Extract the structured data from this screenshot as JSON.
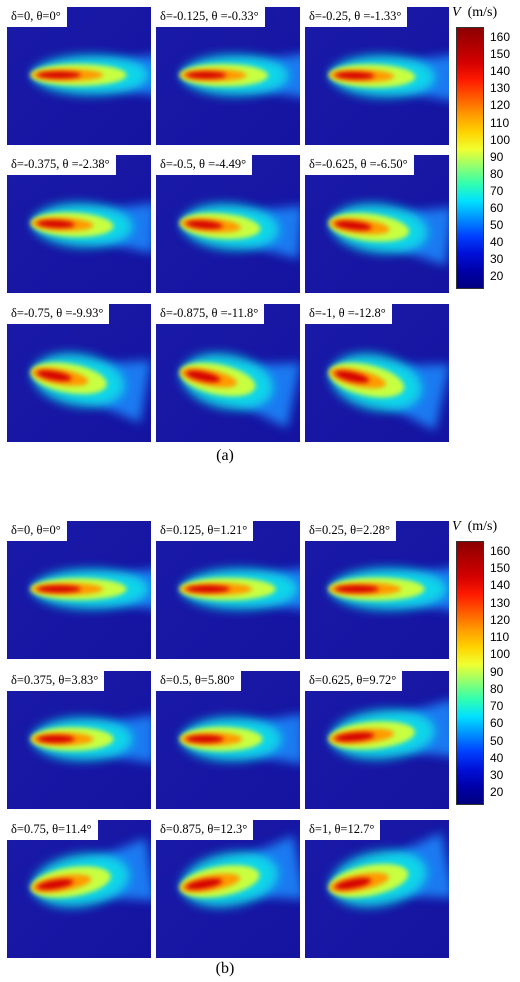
{
  "figure_a": {
    "sublabel": "(a)",
    "panels": [
      {
        "label": "δ=0, θ=0°",
        "tilt": 0,
        "len": 1.0,
        "spread": 0.0
      },
      {
        "label": "δ=-0.125, θ =-0.33°",
        "tilt": 0.3,
        "len": 0.92,
        "spread": 0.05
      },
      {
        "label": "δ=-0.25, θ =-1.33°",
        "tilt": 1.3,
        "len": 0.9,
        "spread": 0.1
      },
      {
        "label": "δ=-0.375, θ =-2.38°",
        "tilt": 2.4,
        "len": 0.86,
        "spread": 0.2
      },
      {
        "label": "δ=-0.5, θ =-4.49°",
        "tilt": 4.5,
        "len": 0.84,
        "spread": 0.3
      },
      {
        "label": "δ=-0.625, θ =-6.50°",
        "tilt": 6.5,
        "len": 0.84,
        "spread": 0.45
      },
      {
        "label": "δ=-0.75, θ =-9.93°",
        "tilt": 9.9,
        "len": 0.8,
        "spread": 0.6
      },
      {
        "label": "δ=-0.875, θ =-11.8°",
        "tilt": 11.8,
        "len": 0.8,
        "spread": 0.7
      },
      {
        "label": "δ=-1, θ =-12.8°",
        "tilt": 12.8,
        "len": 0.8,
        "spread": 0.75
      }
    ]
  },
  "figure_b": {
    "sublabel": "(b)",
    "panels": [
      {
        "label": "δ=0, θ=0°",
        "tilt": 0,
        "len": 1.0,
        "spread": 0.0
      },
      {
        "label": "δ=0.125, θ=1.21°",
        "tilt": 0,
        "len": 1.0,
        "spread": 0.05
      },
      {
        "label": "δ=0.25, θ=2.28°",
        "tilt": 0,
        "len": 1.0,
        "spread": 0.1
      },
      {
        "label": "δ=0.375, θ=3.83°",
        "tilt": 0,
        "len": 0.86,
        "spread": 0.15
      },
      {
        "label": "δ=0.5, θ=5.80°",
        "tilt": 0,
        "len": 0.86,
        "spread": 0.2
      },
      {
        "label": "δ=0.625, θ=9.72°",
        "tilt": -5,
        "len": 0.9,
        "spread": 0.45
      },
      {
        "label": "δ=0.75, θ=11.4°",
        "tilt": -9,
        "len": 0.84,
        "spread": 0.6
      },
      {
        "label": "δ=0.875, θ=12.3°",
        "tilt": -10,
        "len": 0.84,
        "spread": 0.65
      },
      {
        "label": "δ=1, θ=12.7°",
        "tilt": -11,
        "len": 0.84,
        "spread": 0.7
      }
    ]
  },
  "colorbar": {
    "title_var": "V",
    "title_unit": "(m/s)",
    "ticks": [
      "160",
      "150",
      "140",
      "130",
      "120",
      "110",
      "100",
      "90",
      "80",
      "70",
      "60",
      "50",
      "40",
      "30",
      "20"
    ],
    "colors": [
      "#8b0000",
      "#b00000",
      "#d40000",
      "#ff1a00",
      "#ff5a00",
      "#ff9a00",
      "#ffd200",
      "#f0ff30",
      "#90ff70",
      "#30ffb0",
      "#00e0ff",
      "#0090ff",
      "#0040ff",
      "#0010d8",
      "#0000a8",
      "#000080"
    ]
  }
}
